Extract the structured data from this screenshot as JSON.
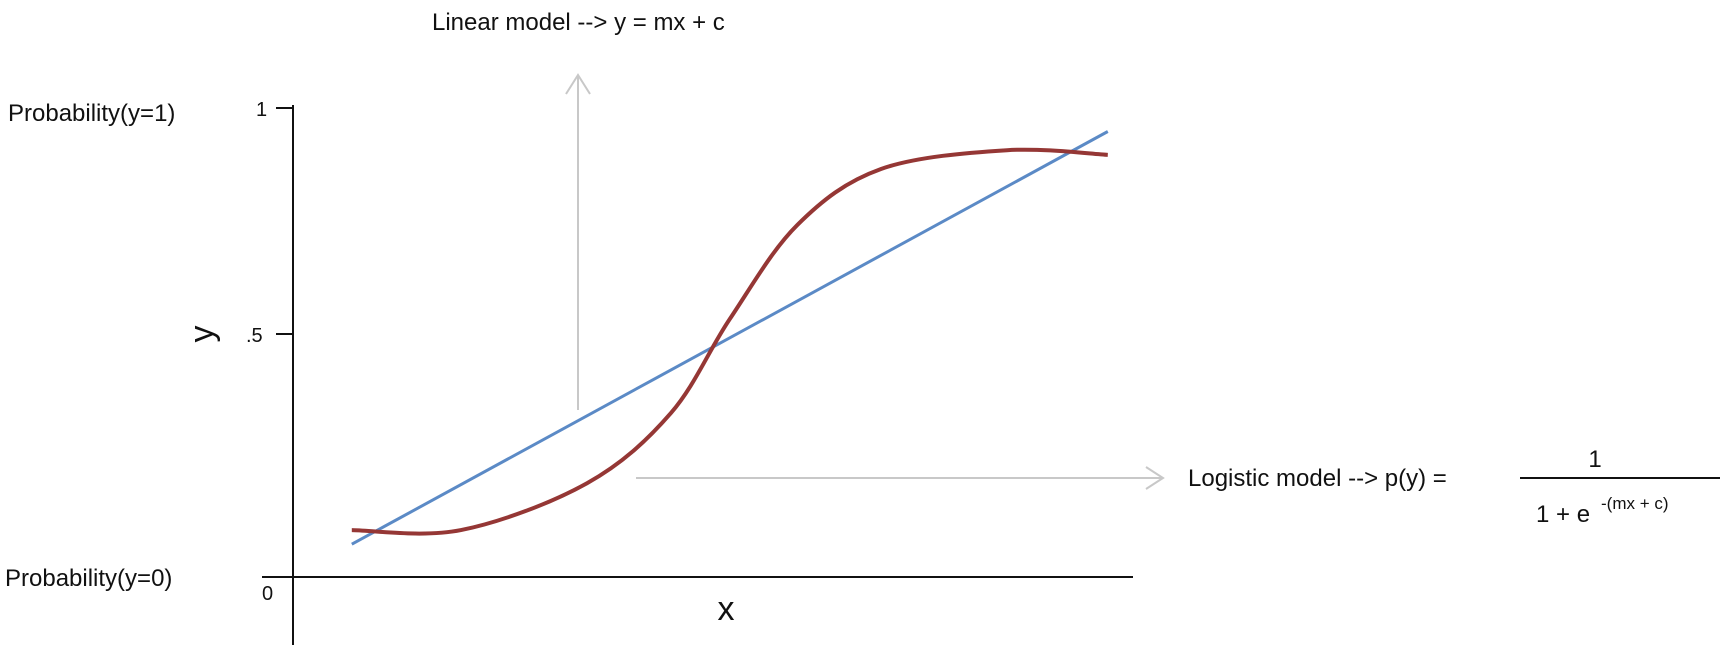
{
  "linear_model_label": "Linear model --> y = mx + c",
  "logistic_model_label": "Logistic model --> p(y) =",
  "fraction_numerator": "1",
  "fraction_denominator": "1 + e",
  "fraction_exponent": "-(mx + c)",
  "probability_y1_label": "Probability(y=1)",
  "probability_y0_label": "Probability(y=0)",
  "y_axis_label": "y",
  "x_axis_label": "x",
  "y_ticks": [
    "1",
    ".5",
    "0"
  ],
  "colors": {
    "axis": "#111111",
    "linear_line": "#5b8ac6",
    "logistic_curve": "#953735",
    "pointer_arrow": "#c8c8c8"
  },
  "chart_data": {
    "type": "line",
    "ylim": [
      0,
      1
    ],
    "series": [
      {
        "kind": "linear",
        "x": [
          0.07,
          0.97
        ],
        "y": [
          0.07,
          0.95
        ]
      },
      {
        "kind": "logistic",
        "x": [
          0.07,
          0.2,
          0.35,
          0.45,
          0.52,
          0.6,
          0.7,
          0.85,
          0.97
        ],
        "y": [
          0.1,
          0.1,
          0.2,
          0.35,
          0.55,
          0.75,
          0.87,
          0.91,
          0.9
        ]
      }
    ]
  }
}
